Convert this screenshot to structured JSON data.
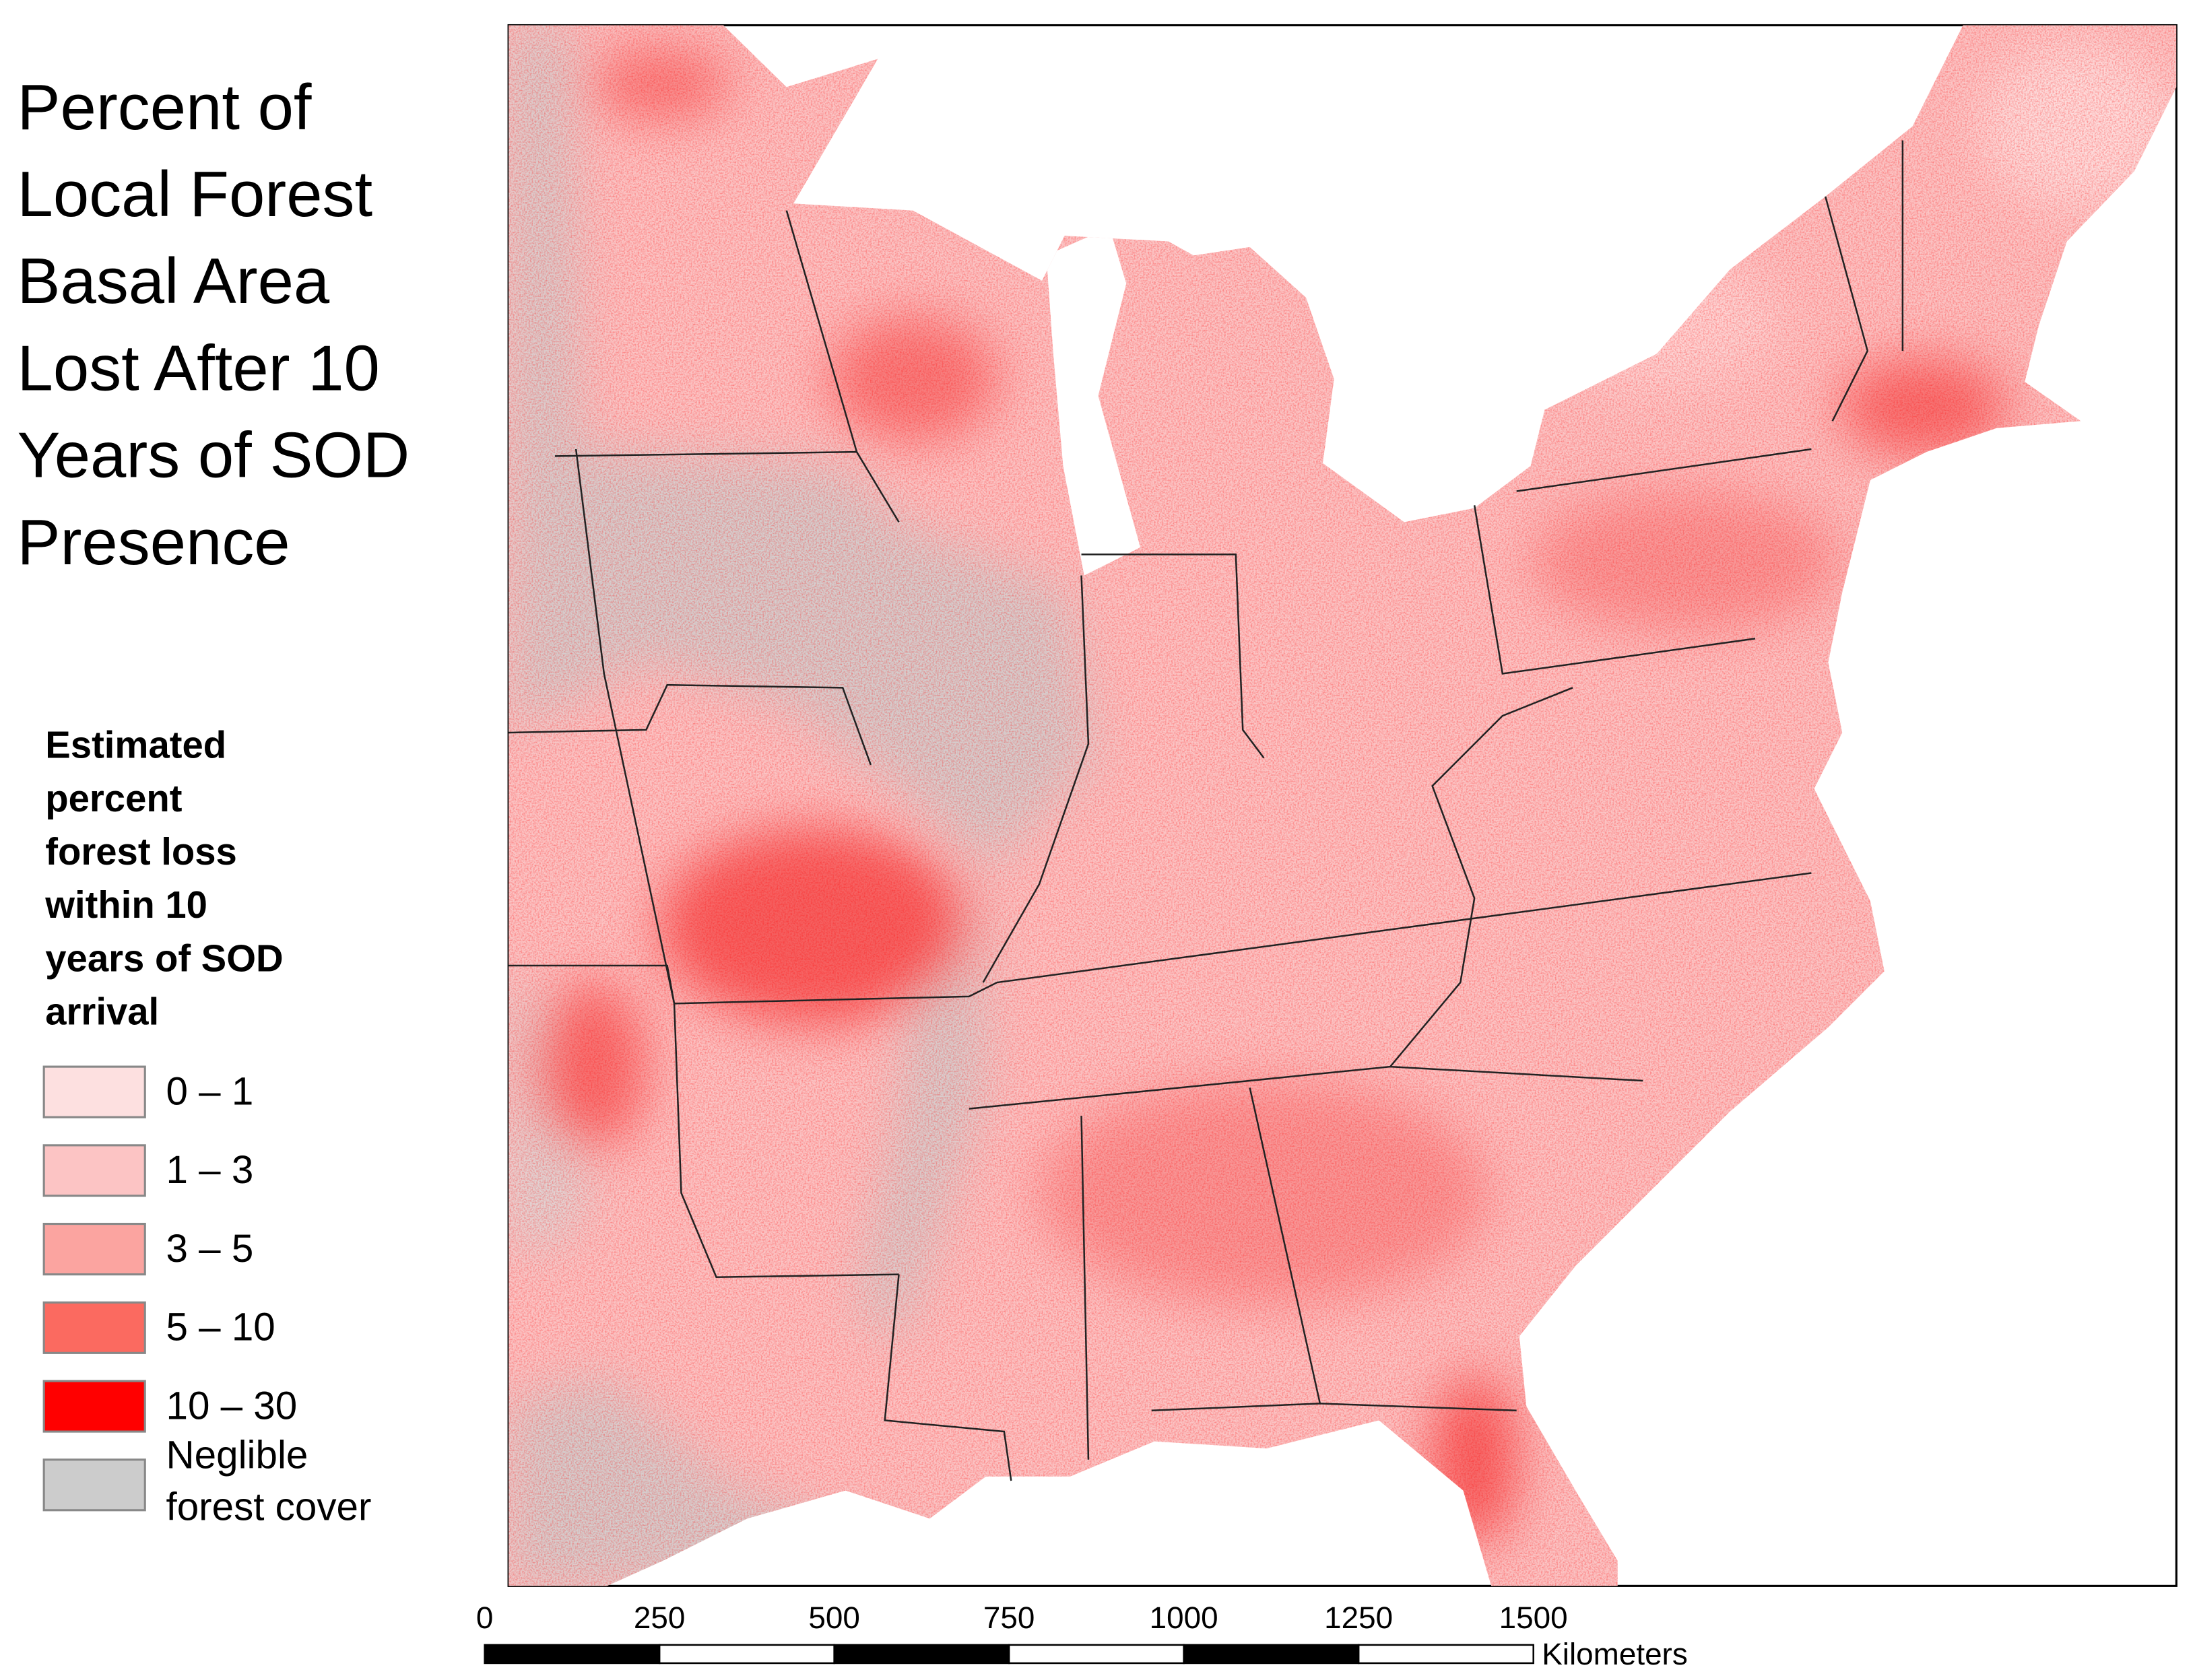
{
  "title_lines": [
    "Percent of",
    "Local Forest",
    "Basal Area",
    "Lost After 10",
    "Years of SOD",
    "Presence"
  ],
  "legend": {
    "title_lines": [
      "Estimated",
      "percent",
      "forest loss",
      "within 10",
      "years of SOD",
      "arrival"
    ],
    "items": [
      {
        "label": "0 – 1",
        "color": "#fde0e0"
      },
      {
        "label": "1 – 3",
        "color": "#fcc4c4"
      },
      {
        "label": "3 – 5",
        "color": "#fba4a0"
      },
      {
        "label": "5 – 10",
        "color": "#fb6a60"
      },
      {
        "label": "10 – 30",
        "color": "#ff0000"
      },
      {
        "label_lines": [
          "Neglible",
          "forest cover"
        ],
        "color": "#cccccc"
      }
    ]
  },
  "scale_bar": {
    "ticks": [
      0,
      250,
      500,
      750,
      1000,
      1250,
      1500
    ],
    "unit": "Kilometers"
  }
}
